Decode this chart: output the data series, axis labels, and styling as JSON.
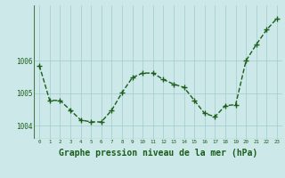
{
  "hours": [
    0,
    1,
    2,
    3,
    4,
    5,
    6,
    7,
    8,
    9,
    10,
    11,
    12,
    13,
    14,
    15,
    16,
    17,
    18,
    19,
    20,
    21,
    22,
    23
  ],
  "pressure": [
    1005.85,
    1004.78,
    1004.78,
    1004.48,
    1004.18,
    1004.12,
    1004.12,
    1004.48,
    1005.02,
    1005.48,
    1005.62,
    1005.62,
    1005.42,
    1005.28,
    1005.18,
    1004.78,
    1004.38,
    1004.28,
    1004.62,
    1004.65,
    1006.0,
    1006.5,
    1006.95,
    1007.3
  ],
  "line_color": "#1a5e1a",
  "marker": "+",
  "marker_size": 4,
  "marker_lw": 1.0,
  "bg_color": "#cce8e8",
  "grid_color": "#a0cccc",
  "title": "Graphe pression niveau de la mer (hPa)",
  "title_color": "#1a5e1a",
  "title_fontsize": 7.0,
  "ylabel_values": [
    1004,
    1005,
    1006
  ],
  "ylim": [
    1003.6,
    1007.7
  ],
  "xlim": [
    -0.5,
    23.5
  ],
  "line_width": 1.0
}
